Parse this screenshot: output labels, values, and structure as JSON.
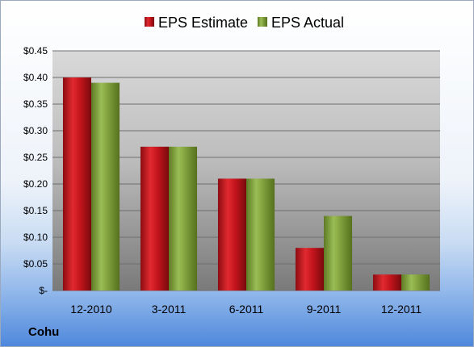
{
  "company": "Cohu",
  "colors": {
    "estimate": "#c0141b",
    "actual": "#7e9f3a"
  },
  "chart_data": {
    "type": "bar",
    "categories": [
      "12-2010",
      "3-2011",
      "6-2011",
      "9-2011",
      "12-2011"
    ],
    "series": [
      {
        "name": "EPS Estimate",
        "values": [
          0.4,
          0.27,
          0.21,
          0.08,
          0.03
        ]
      },
      {
        "name": "EPS Actual",
        "values": [
          0.39,
          0.27,
          0.21,
          0.14,
          0.03
        ]
      }
    ],
    "yticks": [
      0,
      0.05,
      0.1,
      0.15,
      0.2,
      0.25,
      0.3,
      0.35,
      0.4,
      0.45
    ],
    "ytick_labels": [
      "$-",
      "$0.05",
      "$0.10",
      "$0.15",
      "$0.20",
      "$0.25",
      "$0.30",
      "$0.35",
      "$0.40",
      "$0.45"
    ],
    "ylim": [
      0,
      0.45
    ],
    "grid": true,
    "legend_position": "top"
  }
}
